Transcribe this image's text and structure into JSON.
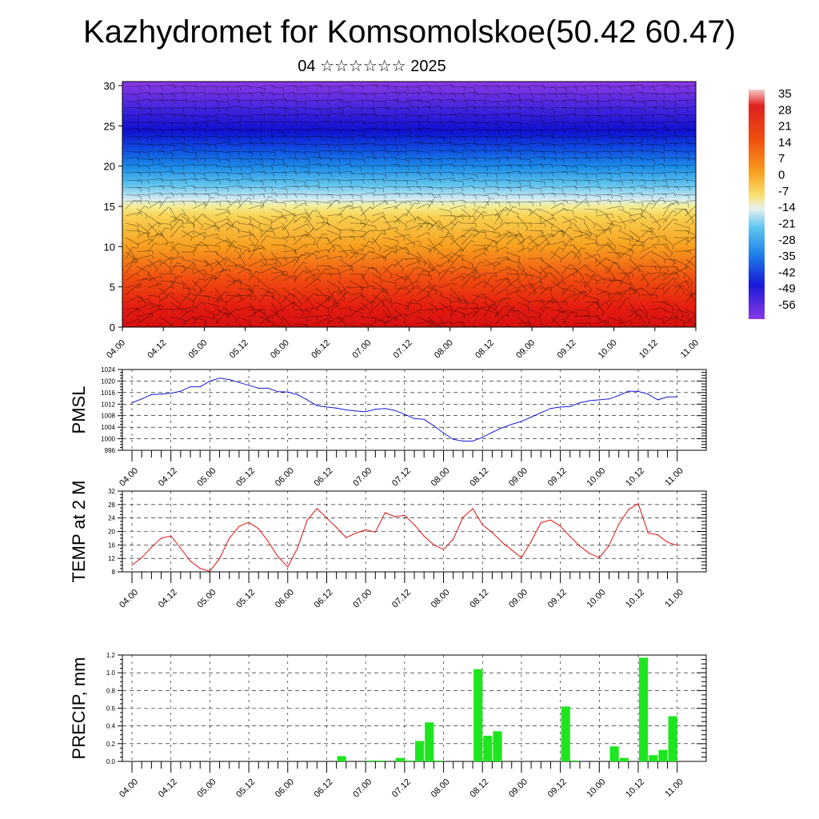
{
  "title": "Kazhydromet for Komsomolskoe(50.42 60.47)",
  "subtitle": "04 ☆☆☆☆☆☆ 2025",
  "chart_data": [
    {
      "type": "heatmap",
      "description_of_field": "temperature cross-section with wind barbs",
      "y_ticks": [
        0,
        5,
        10,
        15,
        20,
        25,
        30
      ],
      "ylim": [
        0,
        30.5
      ],
      "x_ticks": [
        "04.00",
        "04.12",
        "05.00",
        "05.12",
        "06.00",
        "06.12",
        "07.00",
        "07.12",
        "08.00",
        "08.12",
        "09.00",
        "09.12",
        "10.00",
        "10.12",
        "11.00"
      ],
      "colorbar": {
        "labels": [
          "35",
          "28",
          "21",
          "14",
          "7",
          "0",
          "-7",
          "-14",
          "-21",
          "-28",
          "-35",
          "-42",
          "-49",
          "-56"
        ],
        "colors": [
          "#f7c8c8",
          "#e01818",
          "#ee4a12",
          "#f57a10",
          "#f7a020",
          "#f8c840",
          "#f5ec90",
          "#d8ecf0",
          "#60c4ee",
          "#1e8ee8",
          "#1050e0",
          "#1818d8",
          "#4c22dc",
          "#8a3ae6"
        ]
      },
      "wind_barbs": true
    },
    {
      "type": "line",
      "ylabel": "PMSL",
      "y_ticks": [
        996,
        1000,
        1004,
        1008,
        1012,
        1016,
        1020,
        1024
      ],
      "ylim": [
        996,
        1024
      ],
      "x_ticks": [
        "04.00",
        "04.12",
        "05.00",
        "05.12",
        "06.00",
        "06.12",
        "07.00",
        "07.12",
        "08.00",
        "08.12",
        "09.00",
        "09.12",
        "10.00",
        "10.12",
        "11.00"
      ],
      "color": "#1a1adc",
      "x": [
        0,
        3,
        6,
        9,
        12,
        15,
        18,
        21,
        24,
        27,
        30,
        33,
        36,
        39,
        42,
        45,
        48,
        51,
        54,
        57,
        60,
        63,
        66,
        69,
        72,
        75,
        78,
        81,
        84,
        87,
        90,
        93,
        96,
        99,
        102,
        105,
        108,
        111,
        114,
        117,
        120,
        123,
        126,
        129,
        132,
        135,
        138,
        141,
        144,
        147,
        150,
        153,
        156,
        159,
        162,
        165,
        168
      ],
      "values": [
        1012.5,
        1013.8,
        1015.3,
        1015.5,
        1015.8,
        1016.5,
        1018,
        1018,
        1020,
        1021,
        1020.5,
        1019.5,
        1018.5,
        1017.5,
        1017.5,
        1016.3,
        1016.2,
        1015.3,
        1013.5,
        1011.5,
        1011,
        1010.6,
        1010,
        1009.6,
        1009.4,
        1010.2,
        1010.5,
        1009.8,
        1008.5,
        1007,
        1006.7,
        1004.5,
        1002,
        999.8,
        999.2,
        999.2,
        1000.5,
        1002.2,
        1003.8,
        1005,
        1006,
        1007.5,
        1009,
        1010.5,
        1011,
        1011.2,
        1012.5,
        1013.2,
        1013.5,
        1013.8,
        1015,
        1016.5,
        1016.4,
        1015.5,
        1013.5,
        1014.5,
        1014.5
      ]
    },
    {
      "type": "line",
      "ylabel": "TEMP at 2 M",
      "y_ticks": [
        8,
        12,
        16,
        20,
        24,
        28,
        32
      ],
      "ylim": [
        8,
        32
      ],
      "x_ticks": [
        "04.00",
        "04.12",
        "05.00",
        "05.12",
        "06.00",
        "06.12",
        "07.00",
        "07.12",
        "08.00",
        "08.12",
        "09.00",
        "09.12",
        "10.00",
        "10.12",
        "11.00"
      ],
      "color": "#e01010",
      "x": [
        0,
        3,
        6,
        9,
        12,
        15,
        18,
        21,
        24,
        27,
        30,
        33,
        36,
        39,
        42,
        45,
        48,
        51,
        54,
        57,
        60,
        63,
        66,
        69,
        72,
        75,
        78,
        81,
        84,
        87,
        90,
        93,
        96,
        99,
        102,
        105,
        108,
        111,
        114,
        117,
        120,
        123,
        126,
        129,
        132,
        135,
        138,
        141,
        144,
        147,
        150,
        153,
        156,
        159,
        162,
        165,
        168
      ],
      "values": [
        10,
        12.2,
        15.3,
        18,
        18.7,
        15,
        11.2,
        9,
        8.2,
        12,
        18,
        21.5,
        22.7,
        20.8,
        17,
        12.5,
        9.5,
        15,
        23.4,
        26.8,
        24,
        21.2,
        18.2,
        19.5,
        20.5,
        19.8,
        25.6,
        24.4,
        24.8,
        22,
        18.6,
        16,
        14.7,
        17.7,
        24.2,
        26.8,
        22,
        19.7,
        16.8,
        14.5,
        12.2,
        17,
        22.6,
        23.4,
        21.6,
        18.5,
        15.6,
        13.5,
        12.2,
        15.8,
        22.2,
        26.5,
        28.3,
        19.6,
        19,
        16.8,
        15.9
      ]
    },
    {
      "type": "bar",
      "ylabel": "PRECIP, mm",
      "y_ticks": [
        "0.0",
        "0.2",
        "0.4",
        "0.6",
        "0.8",
        "1.0",
        "1.2"
      ],
      "ylim": [
        0,
        1.2
      ],
      "x_ticks": [
        "04.00",
        "04.12",
        "05.00",
        "05.12",
        "06.00",
        "06.12",
        "07.00",
        "07.12",
        "08.00",
        "08.12",
        "09.00",
        "09.12",
        "10.00",
        "10.12",
        "11.00"
      ],
      "color": "#1ee61e",
      "x": [
        0,
        3,
        6,
        9,
        12,
        15,
        18,
        21,
        24,
        27,
        30,
        33,
        36,
        39,
        42,
        45,
        48,
        51,
        54,
        57,
        60,
        63,
        66,
        69,
        72,
        75,
        78,
        81,
        84,
        87,
        90,
        93,
        96,
        99,
        102,
        105,
        108,
        111,
        114,
        117,
        120,
        123,
        126,
        129,
        132,
        135,
        138,
        141,
        144,
        147,
        150,
        153,
        156,
        159,
        162,
        165
      ],
      "values": [
        0,
        0,
        0,
        0,
        0,
        0,
        0,
        0,
        0,
        0,
        0,
        0,
        0,
        0,
        0,
        0,
        0,
        0,
        0,
        0,
        0,
        0.06,
        0,
        0,
        0.01,
        0.01,
        0,
        0.04,
        0.01,
        0.23,
        0.44,
        0.01,
        0,
        0,
        0,
        1.04,
        0.29,
        0.34,
        0,
        0,
        0,
        0,
        0,
        0,
        0.62,
        0.01,
        0,
        0,
        0,
        0.17,
        0.04,
        0,
        1.17,
        0.07,
        0.13,
        0.51
      ]
    }
  ]
}
